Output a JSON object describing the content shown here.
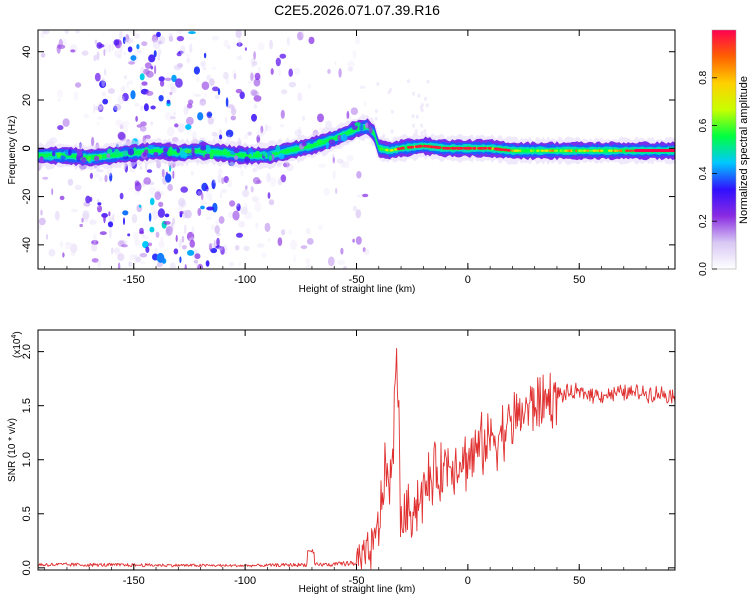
{
  "title": "C2E5.2026.071.07.39.R16",
  "chart_data": [
    {
      "type": "heatmap",
      "xlabel": "Height of straight line (km)",
      "ylabel": "Frequency (Hz)",
      "xlim": [
        -193,
        93
      ],
      "ylim": [
        -50,
        49
      ],
      "xticks": [
        -150,
        -100,
        -50,
        0,
        50
      ],
      "yticks": [
        -40,
        -20,
        0,
        20,
        40
      ],
      "colorbar": {
        "label": "Normalized spectral amplitude",
        "range": [
          0,
          1
        ],
        "ticks": [
          0.0,
          0.2,
          0.4,
          0.6,
          0.8
        ],
        "colormap": [
          "#ffffff",
          "#d8c8f4",
          "#8a2be2",
          "#3010ff",
          "#00c8ff",
          "#00ff40",
          "#c8ff00",
          "#ffd000",
          "#ff6000",
          "#ff0050"
        ]
      },
      "ridge": {
        "x": [
          -193,
          -180,
          -170,
          -160,
          -150,
          -140,
          -130,
          -120,
          -110,
          -100,
          -90,
          -80,
          -70,
          -60,
          -50,
          -45,
          -42,
          -40,
          -35,
          -30,
          -20,
          -10,
          0,
          10,
          20,
          40,
          60,
          80,
          93
        ],
        "y": [
          -3,
          -3,
          -4,
          -3,
          -2,
          -1,
          -2,
          -1,
          -2,
          -3,
          -3,
          -1,
          1,
          4,
          8,
          9,
          6,
          0,
          -1,
          0,
          1,
          0,
          0,
          0,
          -1,
          -1,
          -1,
          -1,
          -1
        ]
      },
      "noise_region": [
        -193,
        -45
      ]
    },
    {
      "type": "line",
      "xlabel": "Height of straight line (km)",
      "ylabel": "SNR (10 * v/v)",
      "yscale_label": "(x10",
      "yscale_exp": "4",
      "xlim": [
        -193,
        93
      ],
      "ylim": [
        -0.02,
        2.2
      ],
      "xticks": [
        -150,
        -100,
        -50,
        0,
        50
      ],
      "yticks": [
        0.0,
        0.5,
        1.0,
        1.5,
        2.0
      ],
      "ytick_labels": [
        "0.0",
        "0.5",
        "1.0",
        "1.5",
        "2.0"
      ],
      "line_color": "#e03030",
      "envelope": {
        "x": [
          -193,
          -100,
          -70,
          -60,
          -50,
          -45,
          -42,
          -40,
          -38,
          -36,
          -34,
          -33,
          -32,
          -31,
          -30,
          -28,
          -25,
          -20,
          -15,
          -10,
          -5,
          0,
          5,
          10,
          15,
          20,
          25,
          30,
          35,
          40,
          50,
          60,
          70,
          80,
          93
        ],
        "y": [
          0.03,
          0.02,
          0.03,
          0.03,
          0.05,
          0.1,
          0.2,
          0.4,
          0.75,
          0.9,
          0.8,
          1.4,
          2.15,
          1.2,
          0.5,
          0.45,
          0.55,
          0.7,
          0.85,
          0.95,
          1.0,
          1.0,
          1.1,
          1.2,
          1.25,
          1.35,
          1.45,
          1.5,
          1.55,
          1.6,
          1.62,
          1.6,
          1.62,
          1.62,
          1.6
        ]
      }
    }
  ]
}
